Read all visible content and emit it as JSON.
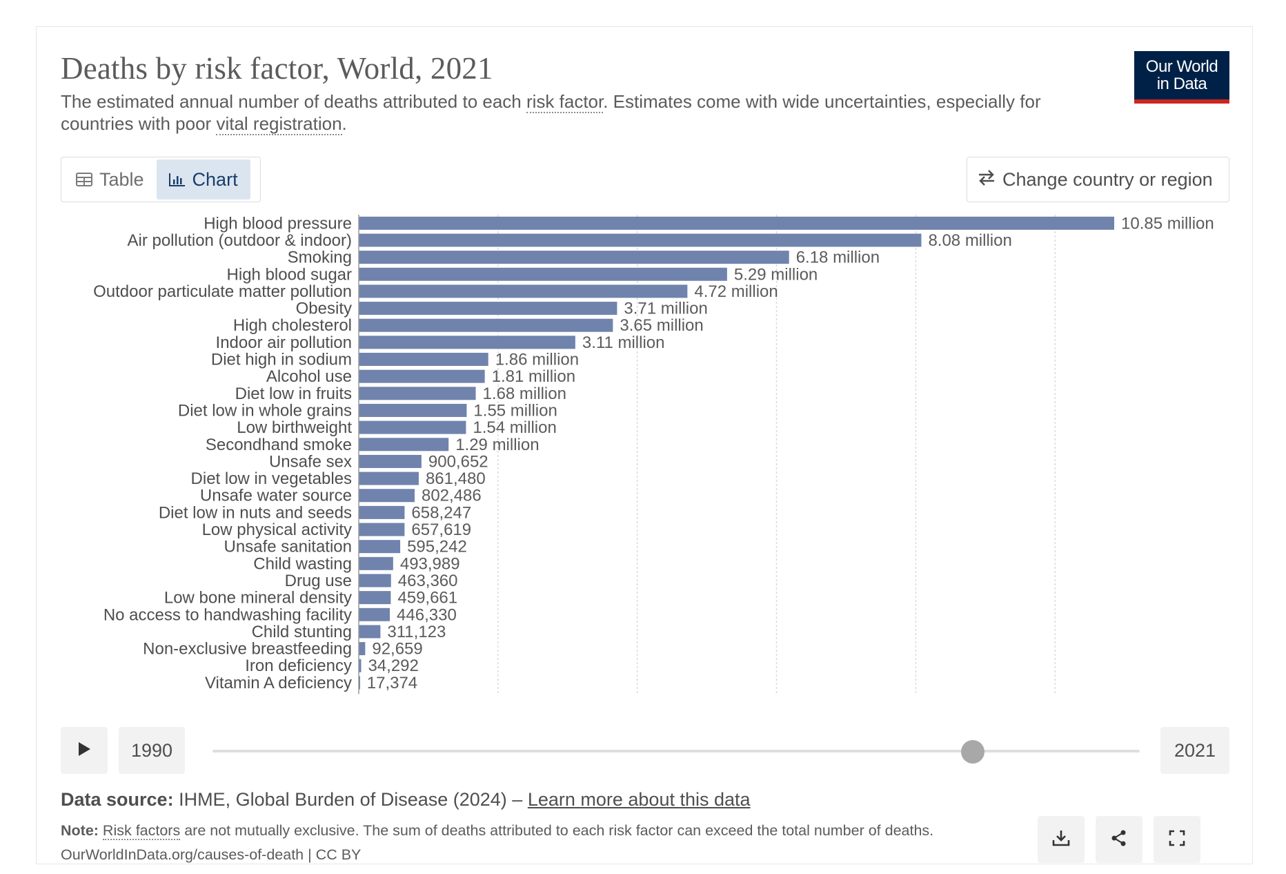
{
  "header": {
    "title": "Deaths by risk factor, World, 2021",
    "subtitle_part1": "The estimated annual number of deaths attributed to each ",
    "subtitle_link1": "risk factor",
    "subtitle_part2": ". Estimates come with wide uncertainties, especially for countries with poor ",
    "subtitle_link2": "vital registration",
    "subtitle_part3": "."
  },
  "logo": {
    "line1": "Our World",
    "line2": "in Data"
  },
  "tabs": [
    {
      "label": "Table",
      "icon": "table-icon",
      "active": false
    },
    {
      "label": "Chart",
      "icon": "chart-icon",
      "active": true
    }
  ],
  "change_region_label": "Change country or region",
  "timeline": {
    "start_year": "1990",
    "end_year": "2021",
    "position": 1.0
  },
  "footer": {
    "source_label": "Data source:",
    "source_text": " IHME, Global Burden of Disease (2024) – ",
    "source_link": "Learn more about this data",
    "note_label": "Note:",
    "note_link": "Risk factors",
    "note_text": " are not mutually exclusive. The sum of deaths attributed to each risk factor can exceed the total number of deaths.",
    "url": "OurWorldInData.org/causes-of-death | CC BY"
  },
  "colors": {
    "bar": "#6f83ad",
    "logo_bg": "#002147",
    "logo_accent": "#ce261e",
    "active_tab_bg": "#dbe5f0"
  },
  "chart_data": {
    "type": "bar",
    "orientation": "horizontal",
    "grid": "vertical dashed",
    "xlim": [
      0,
      10850000
    ],
    "categories": [
      "High blood pressure",
      "Air pollution (outdoor & indoor)",
      "Smoking",
      "High blood sugar",
      "Outdoor particulate matter pollution",
      "Obesity",
      "High cholesterol",
      "Indoor air pollution",
      "Diet high in sodium",
      "Alcohol use",
      "Diet low in fruits",
      "Diet low in whole grains",
      "Low birthweight",
      "Secondhand smoke",
      "Unsafe sex",
      "Diet low in vegetables",
      "Unsafe water source",
      "Diet low in nuts and seeds",
      "Low physical activity",
      "Unsafe sanitation",
      "Child wasting",
      "Drug use",
      "Low bone mineral density",
      "No access to handwashing facility",
      "Child stunting",
      "Non-exclusive breastfeeding",
      "Iron deficiency",
      "Vitamin A deficiency"
    ],
    "values": [
      10850000,
      8080000,
      6180000,
      5290000,
      4720000,
      3710000,
      3650000,
      3110000,
      1860000,
      1810000,
      1680000,
      1550000,
      1540000,
      1290000,
      900652,
      861480,
      802486,
      658247,
      657619,
      595242,
      493989,
      463360,
      459661,
      446330,
      311123,
      92659,
      34292,
      17374
    ],
    "value_labels": [
      "10.85 million",
      "8.08 million",
      "6.18 million",
      "5.29 million",
      "4.72 million",
      "3.71 million",
      "3.65 million",
      "3.11 million",
      "1.86 million",
      "1.81 million",
      "1.68 million",
      "1.55 million",
      "1.54 million",
      "1.29 million",
      "900,652",
      "861,480",
      "802,486",
      "658,247",
      "657,619",
      "595,242",
      "493,989",
      "463,360",
      "459,661",
      "446,330",
      "311,123",
      "92,659",
      "34,292",
      "17,374"
    ]
  }
}
